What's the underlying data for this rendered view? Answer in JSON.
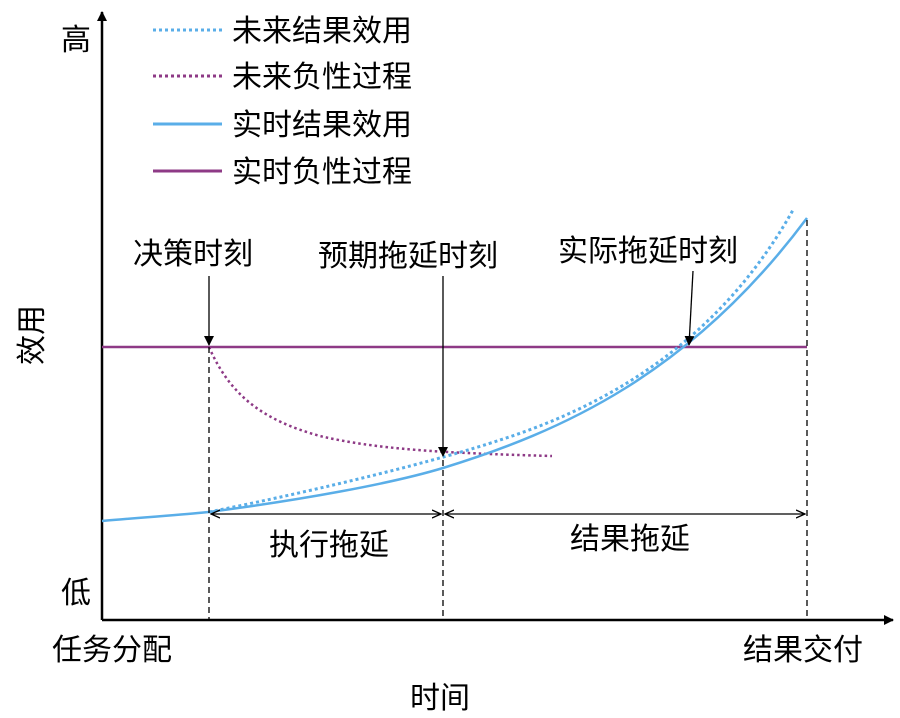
{
  "axes": {
    "y_label": "效用",
    "y_high": "高",
    "y_low": "低",
    "x_label": "时间",
    "x_start": "任务分配",
    "x_end": "结果交付"
  },
  "legend": {
    "items": [
      {
        "label": "未来结果效用",
        "style": "dotted",
        "color": "#5aaee8"
      },
      {
        "label": "未来负性过程",
        "style": "dotted",
        "color": "#8e3a86"
      },
      {
        "label": "实时结果效用",
        "style": "solid",
        "color": "#5aaee8"
      },
      {
        "label": "实时负性过程",
        "style": "solid",
        "color": "#8e3a86"
      }
    ]
  },
  "markers": {
    "decision": "决策时刻",
    "expected_delay": "预期拖延时刻",
    "actual_delay": "实际拖延时刻"
  },
  "spans": {
    "execution_delay": "执行拖延",
    "result_delay": "结果拖延"
  },
  "colors": {
    "outcome": "#5aaee8",
    "process": "#8e3a86",
    "axis": "#000000"
  }
}
